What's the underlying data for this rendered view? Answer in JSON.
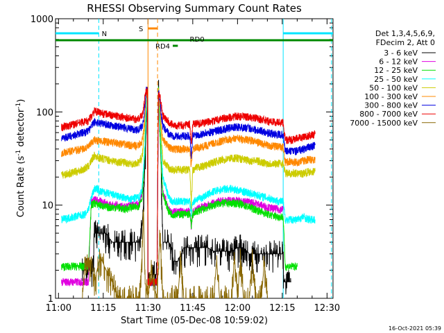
{
  "chart_data": {
    "type": "line",
    "title": "RHESSI Observing Summary Count Rates",
    "xlabel": "Start Time (05-Dec-08 10:59:02)",
    "ylabel_main": "Count Rate (s",
    "ylabel_sup1": "-1",
    "ylabel_mid": " detector",
    "ylabel_sup2": "-1",
    "ylabel_end": ")",
    "yscale": "log",
    "ylim": [
      1,
      1000
    ],
    "xlim": [
      659,
      752
    ],
    "x_unit": "minutes since 00:00 UT",
    "x_ticks": [
      {
        "v": 660,
        "label": "11:00"
      },
      {
        "v": 675,
        "label": "11:15"
      },
      {
        "v": 690,
        "label": "11:30"
      },
      {
        "v": 705,
        "label": "11:45"
      },
      {
        "v": 720,
        "label": "12:00"
      },
      {
        "v": 735,
        "label": "12:15"
      },
      {
        "v": 750,
        "label": "12:30"
      }
    ],
    "y_ticks": [
      {
        "v": 1,
        "label": "1"
      },
      {
        "v": 10,
        "label": "10"
      },
      {
        "v": 100,
        "label": "100"
      },
      {
        "v": 1000,
        "label": "1000"
      }
    ],
    "legend_header": [
      "Det 1,3,4,5,6,9,",
      "FDecim 2, Att 0"
    ],
    "legend_position": "right",
    "series": [
      {
        "name": "3 - 6 keV",
        "color": "#000000",
        "x": [
          668,
          671.5,
          672,
          674,
          676,
          678,
          680,
          682,
          684,
          686,
          687,
          688,
          688.5,
          689,
          689.4,
          689.8,
          690,
          693,
          693.5,
          694,
          694.5,
          695,
          697,
          698,
          698.5,
          700,
          702,
          704,
          706,
          708,
          710,
          712,
          714,
          716,
          718,
          720,
          722,
          724,
          726,
          728,
          730,
          732,
          734,
          735.3,
          735.5,
          736,
          738
        ],
        "y": [
          2,
          2,
          5,
          5,
          5,
          4,
          4,
          4,
          4,
          4,
          4,
          6,
          10,
          30,
          60,
          170,
          1.8,
          1.8,
          170,
          80,
          18,
          4,
          4,
          3.5,
          2.5,
          2.5,
          3.5,
          3.5,
          3.5,
          3.5,
          3.5,
          3.2,
          3.2,
          3.2,
          3.2,
          3.5,
          3.5,
          3,
          3,
          3,
          3,
          3,
          3,
          3,
          1.5,
          1.5,
          1.5
        ]
      },
      {
        "name": "6 - 12 keV",
        "color": "#e000e0",
        "x": [
          661,
          670,
          671,
          672,
          674,
          676,
          678,
          680,
          682,
          684,
          686,
          687,
          688,
          688.5,
          689,
          689.4,
          689.8,
          690,
          693,
          693.5,
          694,
          694.5,
          695,
          697,
          698,
          700,
          702,
          704,
          704.5,
          705,
          705.5,
          706,
          708,
          710,
          712,
          714,
          716,
          718,
          720,
          722,
          724,
          726,
          728,
          730,
          732,
          734,
          735.3
        ],
        "y": [
          1.5,
          1.5,
          11,
          11.5,
          11,
          10.5,
          10,
          10,
          9.5,
          10,
          10,
          10.5,
          13,
          20,
          40,
          90,
          170,
          1.5,
          1.5,
          170,
          60,
          25,
          14,
          9,
          8.5,
          8.5,
          8.5,
          8.5,
          6,
          8.5,
          8.5,
          9,
          9.5,
          10,
          10.5,
          11,
          11.2,
          11.3,
          11.2,
          11,
          10.8,
          10.5,
          10,
          9.5,
          9.2,
          9,
          9
        ]
      },
      {
        "name": "12 - 25 keV",
        "color": "#00e000",
        "x": [
          661,
          670,
          671,
          672,
          674,
          676,
          678,
          680,
          682,
          684,
          686,
          687,
          688,
          688.5,
          689,
          689.4,
          689.8,
          690,
          693,
          693.5,
          694,
          694.5,
          695,
          697,
          698,
          700,
          702,
          704,
          704.5,
          705,
          705.5,
          706,
          708,
          710,
          712,
          714,
          716,
          718,
          720,
          722,
          724,
          726,
          728,
          730,
          732,
          734,
          735.3,
          736,
          740
        ],
        "y": [
          2.2,
          2.2,
          10,
          10.5,
          10,
          9.5,
          9.5,
          9.5,
          9,
          9.5,
          9.5,
          10,
          12,
          20,
          40,
          90,
          170,
          1.5,
          1.5,
          170,
          60,
          25,
          13,
          8.5,
          8,
          8,
          8,
          8,
          6,
          8,
          8,
          8.5,
          9,
          9.5,
          10,
          10.5,
          10.5,
          10.5,
          10.5,
          10,
          9.5,
          9,
          8.5,
          8,
          7.7,
          7.5,
          7.5,
          2.2,
          2.2
        ]
      },
      {
        "name": "25 - 50 keV",
        "color": "#00ffff",
        "x": [
          661,
          669,
          670,
          671,
          672,
          673,
          674,
          676,
          678,
          680,
          682,
          684,
          686,
          687,
          688,
          688.5,
          689,
          689.4,
          689.8,
          690,
          693,
          693.5,
          694,
          694.5,
          695,
          697,
          698,
          700,
          702,
          704,
          704.5,
          705,
          705.5,
          706,
          708,
          710,
          712,
          714,
          716,
          718,
          720,
          722,
          724,
          726,
          728,
          730,
          732,
          734,
          735.3,
          736,
          738,
          740,
          742,
          744,
          746
        ],
        "y": [
          7,
          8,
          9,
          12,
          15,
          15,
          14,
          13.5,
          13,
          12.5,
          12,
          11.5,
          12,
          12,
          15,
          25,
          50,
          100,
          170,
          1.5,
          1.5,
          170,
          80,
          40,
          20,
          12,
          11,
          11,
          11,
          11,
          8,
          11,
          11,
          11.5,
          12,
          13,
          14,
          14.5,
          15,
          15,
          14.5,
          14,
          13.5,
          13,
          12.5,
          12,
          11.5,
          11,
          11,
          7,
          7,
          7,
          7.5,
          7,
          7
        ]
      },
      {
        "name": "50 - 100 keV",
        "color": "#cccc00",
        "x": [
          661,
          664,
          668,
          670,
          671,
          672,
          674,
          676,
          678,
          680,
          682,
          684,
          686,
          687,
          688,
          688.5,
          689,
          689.4,
          689.8,
          690,
          693,
          693.5,
          694,
          694.5,
          695,
          697,
          698,
          700,
          702,
          704,
          704.5,
          705,
          705.5,
          706,
          708,
          710,
          712,
          714,
          716,
          718,
          720,
          722,
          724,
          726,
          728,
          730,
          732,
          734,
          735.3,
          736,
          738,
          740,
          742,
          744,
          746
        ],
        "y": [
          21,
          22,
          24,
          26,
          30,
          34,
          32,
          31,
          30,
          29,
          29,
          28,
          28,
          29,
          33,
          45,
          80,
          150,
          170,
          1.5,
          1.5,
          170,
          100,
          50,
          30,
          25,
          24,
          24,
          24,
          24,
          10,
          24,
          24,
          25,
          26,
          27,
          29,
          30,
          31,
          32,
          32,
          31,
          30,
          30,
          29,
          28,
          28,
          28,
          28,
          22,
          22,
          22,
          22,
          23,
          23
        ]
      },
      {
        "name": "100 - 300 keV",
        "color": "#ff8800",
        "x": [
          661,
          664,
          668,
          670,
          671,
          672,
          674,
          676,
          678,
          680,
          682,
          684,
          686,
          687,
          688,
          688.5,
          689,
          689.4,
          689.8,
          690,
          693,
          693.5,
          694,
          694.5,
          695,
          697,
          698,
          700,
          702,
          704,
          704.5,
          705,
          705.5,
          706,
          708,
          710,
          712,
          714,
          716,
          718,
          720,
          722,
          724,
          726,
          728,
          730,
          732,
          734,
          735.3,
          736,
          738,
          740,
          742,
          744,
          746
        ],
        "y": [
          36,
          38,
          40,
          42,
          46,
          50,
          49,
          48,
          47,
          46,
          45,
          44,
          43,
          44,
          48,
          60,
          90,
          150,
          170,
          1.5,
          1.5,
          170,
          110,
          70,
          50,
          42,
          40,
          40,
          40,
          40,
          26,
          40,
          40,
          41,
          42,
          44,
          46,
          48,
          50,
          51,
          52,
          51,
          50,
          48,
          46,
          44,
          43,
          42,
          42,
          29,
          29,
          29,
          30,
          31,
          31
        ]
      },
      {
        "name": "300 - 800 keV",
        "color": "#0000e0",
        "x": [
          661,
          664,
          668,
          670,
          671,
          672,
          674,
          676,
          678,
          680,
          682,
          684,
          686,
          687,
          688,
          688.5,
          689,
          689.4,
          689.8,
          690,
          693,
          693.5,
          694,
          694.5,
          695,
          697,
          698,
          700,
          702,
          704,
          704.5,
          705,
          705.5,
          706,
          708,
          710,
          712,
          714,
          716,
          718,
          720,
          722,
          724,
          726,
          728,
          730,
          732,
          734,
          735.3,
          736,
          738,
          740,
          742,
          744,
          746
        ],
        "y": [
          52,
          55,
          60,
          62,
          70,
          78,
          76,
          74,
          72,
          70,
          68,
          66,
          64,
          66,
          70,
          85,
          120,
          170,
          170,
          1.5,
          1.5,
          170,
          130,
          90,
          70,
          58,
          56,
          55,
          55,
          56,
          32,
          56,
          56,
          57,
          58,
          60,
          62,
          64,
          66,
          68,
          69,
          68,
          67,
          65,
          63,
          60,
          58,
          57,
          57,
          38,
          38,
          38,
          40,
          42,
          44
        ]
      },
      {
        "name": "800 - 7000 keV",
        "color": "#ee0000",
        "x": [
          661,
          664,
          668,
          670,
          671,
          672,
          674,
          676,
          678,
          680,
          682,
          684,
          686,
          687,
          688,
          688.5,
          689,
          689.4,
          689.8,
          690,
          693,
          693.5,
          694,
          694.5,
          695,
          697,
          698,
          700,
          702,
          704,
          704.5,
          705,
          705.5,
          706,
          708,
          710,
          712,
          714,
          716,
          718,
          720,
          722,
          724,
          726,
          728,
          730,
          732,
          734,
          735.3,
          736,
          738,
          740,
          742,
          744,
          746
        ],
        "y": [
          68,
          72,
          78,
          80,
          90,
          102,
          98,
          95,
          92,
          90,
          88,
          86,
          84,
          86,
          92,
          110,
          150,
          170,
          170,
          1.5,
          1.5,
          170,
          150,
          115,
          90,
          78,
          74,
          72,
          72,
          74,
          45,
          74,
          74,
          75,
          76,
          78,
          80,
          84,
          86,
          88,
          90,
          89,
          88,
          86,
          83,
          80,
          78,
          77,
          77,
          50,
          50,
          52,
          54,
          56,
          58
        ]
      },
      {
        "name": "7000 - 15000 keV",
        "color": "#886600",
        "x": [
          668,
          669,
          670,
          671,
          672,
          674,
          676,
          678,
          680,
          686,
          687,
          688,
          688.5,
          689,
          690,
          691,
          693,
          694,
          695,
          700,
          701,
          702,
          712,
          713,
          714,
          718,
          719,
          720,
          721,
          722,
          724,
          725,
          726,
          728,
          729,
          730
        ],
        "y": [
          1,
          2.8,
          2,
          2.8,
          1.5,
          2.8,
          2,
          1.5,
          1,
          1,
          1,
          2.8,
          9,
          1.5,
          1,
          2,
          1,
          5,
          1,
          1,
          2.8,
          1,
          1,
          2.5,
          1,
          1,
          2.8,
          1,
          2.8,
          1,
          1,
          2.8,
          1,
          1,
          2.5,
          1
        ]
      }
    ],
    "annotations": {
      "night_label": "N",
      "saa_label": "S",
      "rd0_label": "RD0",
      "rd4_label": "RD4",
      "timestamp": "16-Oct-2021 05:39"
    },
    "markers": {
      "night_segments": [
        [
          659,
          673.5
        ],
        [
          735.3,
          752
        ]
      ],
      "night_solid_edges": [
        735.3
      ],
      "night_dashed_edges": [
        673.5,
        751.5
      ],
      "saa_segment": [
        690,
        693.2
      ],
      "saa_solid_edge": 690,
      "saa_dashed_edge": 693.2,
      "rd0_segment": [
        659,
        752
      ],
      "rd4_segment": [
        698.3,
        700
      ],
      "flare_line": 689.5,
      "flare_dashed": 694.5
    }
  }
}
